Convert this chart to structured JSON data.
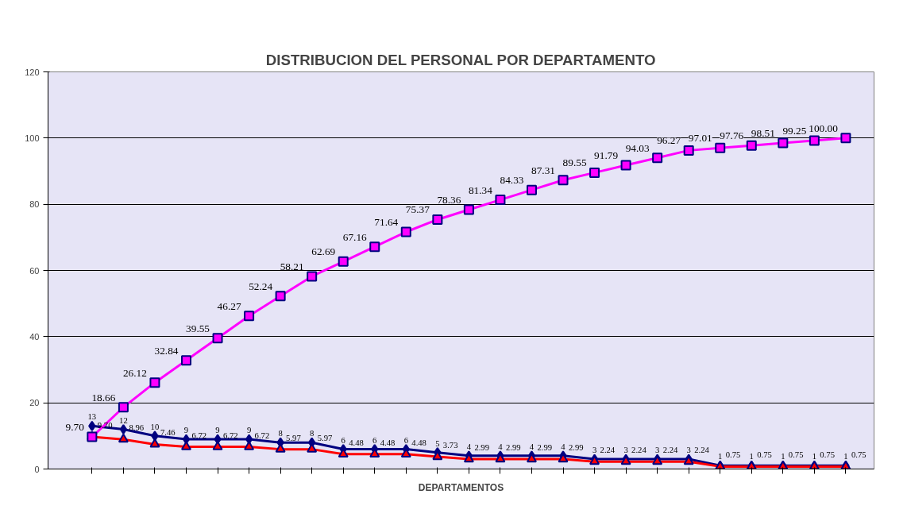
{
  "chart_data": {
    "type": "line",
    "title": "DISTRIBUCION DEL PERSONAL POR DEPARTAMENTO",
    "xlabel": "DEPARTAMENTOS",
    "categories": [
      null,
      null,
      null,
      null,
      null,
      null,
      null,
      null,
      null,
      null,
      null,
      null,
      null,
      null,
      null,
      null,
      null,
      null,
      null,
      null,
      null,
      null,
      null,
      null,
      null
    ],
    "series": [
      {
        "color": "#000080",
        "marker": "diamond",
        "values": [
          13,
          12,
          10,
          9,
          9,
          9,
          8,
          8,
          6,
          6,
          6,
          5,
          4,
          4,
          4,
          4,
          3,
          3,
          3,
          3,
          1,
          1,
          1,
          1,
          1
        ],
        "value_labels": [
          "13",
          "12",
          "10",
          "9",
          "9",
          "9",
          "8",
          "8",
          "6",
          "6",
          "6",
          "5",
          "4",
          "4",
          "4",
          "4",
          "3",
          "3",
          "3",
          "3",
          "1",
          "1",
          "1",
          "1",
          "1"
        ]
      },
      {
        "color": "#ff0000",
        "marker": "triangle",
        "values": [
          9.7,
          8.96,
          7.46,
          6.72,
          6.72,
          6.72,
          5.97,
          5.97,
          4.48,
          4.48,
          4.48,
          3.73,
          2.99,
          2.99,
          2.99,
          2.99,
          2.24,
          2.24,
          2.24,
          2.24,
          0.75,
          0.75,
          0.75,
          0.75,
          0.75
        ],
        "value_labels": [
          "9.70",
          "8.96",
          "7.46",
          "6.72",
          "6.72",
          "6.72",
          "5.97",
          "5.97",
          "4.48",
          "4.48",
          "4.48",
          "3.73",
          "2.99",
          "2.99",
          "2.99",
          "2.99",
          "2.24",
          "2.24",
          "2.24",
          "2.24",
          "0.75",
          "0.75",
          "0.75",
          "0.75",
          "0.75"
        ]
      },
      {
        "color": "#ff00ff",
        "marker": "square",
        "values": [
          9.7,
          18.66,
          26.12,
          32.84,
          39.55,
          46.27,
          52.24,
          58.21,
          62.69,
          67.16,
          71.64,
          75.37,
          78.36,
          81.34,
          84.33,
          87.31,
          89.55,
          91.79,
          94.03,
          96.27,
          97.01,
          97.76,
          98.51,
          99.25,
          100.0
        ],
        "value_labels": [
          "9.70",
          "18.66",
          "26.12",
          "32.84",
          "39.55",
          "46.27",
          "52.24",
          "58.21",
          "62.69",
          "67.16",
          "71.64",
          "75.37",
          "78.36",
          "81.34",
          "84.33",
          "87.31",
          "89.55",
          "91.79",
          "94.03",
          "96.27",
          "97.01",
          "97.76",
          "98.51",
          "99.25",
          "100.00"
        ]
      }
    ],
    "ylim": [
      0,
      120
    ],
    "yticks": [
      0,
      20,
      40,
      60,
      80,
      100,
      120
    ],
    "grid": "y",
    "line_style": "solid"
  }
}
